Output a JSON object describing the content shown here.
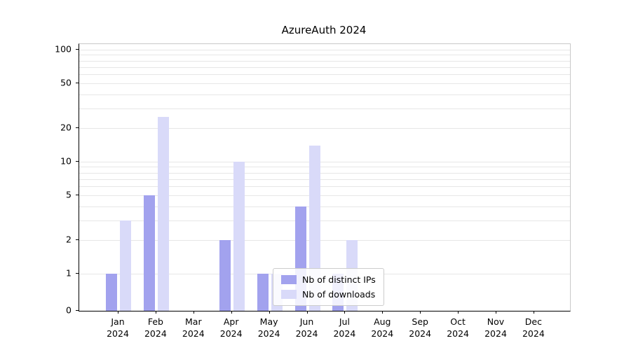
{
  "title": "AzureAuth 2024",
  "chart_data": {
    "type": "bar",
    "yscale": "symlog",
    "title": "AzureAuth 2024",
    "xlabel": "",
    "ylabel": "",
    "categories": [
      "Jan",
      "Feb",
      "Mar",
      "Apr",
      "May",
      "Jun",
      "Jul",
      "Aug",
      "Sep",
      "Oct",
      "Nov",
      "Dec"
    ],
    "year": "2024",
    "series": [
      {
        "name": "Nb of distinct IPs",
        "color": "#a2a2ee",
        "values": [
          1,
          5,
          0,
          2,
          1,
          4,
          1,
          0,
          0,
          0,
          0,
          0
        ]
      },
      {
        "name": "Nb of downloads",
        "color": "#d9daf9",
        "values": [
          3,
          25,
          0,
          10,
          1,
          14,
          2,
          0,
          0,
          0,
          0,
          0
        ]
      }
    ],
    "yticks": [
      0,
      1,
      2,
      5,
      10,
      20,
      50,
      100
    ],
    "gridlines": [
      1,
      2,
      3,
      4,
      5,
      6,
      7,
      8,
      9,
      10,
      20,
      30,
      40,
      50,
      60,
      70,
      80,
      90,
      100
    ],
    "ylim": [
      0,
      100
    ],
    "grid": true,
    "legend": {
      "position": "lower-center-left",
      "entries": [
        "Nb of distinct IPs",
        "Nb of downloads"
      ]
    }
  }
}
